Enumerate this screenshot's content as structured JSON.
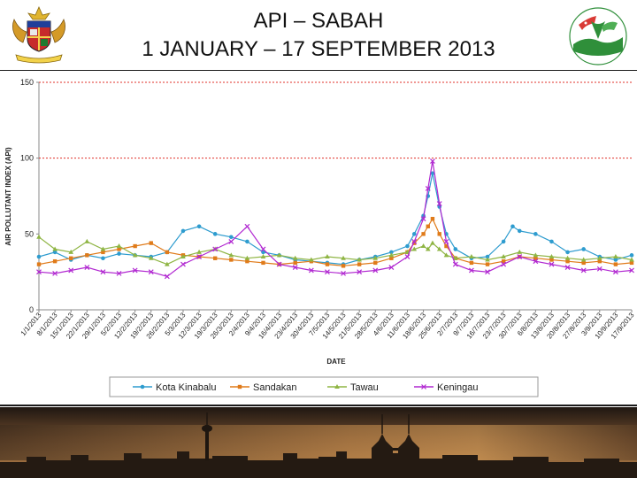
{
  "header": {
    "title_line1": "API – SABAH",
    "title_line2": "1 JANUARY – 17 SEPTEMBER 2013",
    "left_logo": "malaysia-coat-of-arms",
    "right_logo": "department-of-environment-logo"
  },
  "colors": {
    "kota": "#2e9ccf",
    "sandakan": "#e07b1a",
    "tawau": "#8fb544",
    "keningau": "#b128d1",
    "threshold": "#e0302a",
    "axis": "#888888"
  },
  "chart_data": {
    "type": "line",
    "xlabel": "DATE",
    "ylabel": "AIR POLLUTANT INDEX (API)",
    "ylim": [
      0,
      150
    ],
    "yticks": [
      0,
      50,
      100,
      150
    ],
    "reference_lines": [
      100,
      150
    ],
    "grid": false,
    "legend_position": "bottom",
    "start_date": "1/1/2013",
    "x_tick_labels": [
      "1/1/2013",
      "8/1/2013",
      "15/1/2013",
      "22/1/2013",
      "29/1/2013",
      "5/2/2013",
      "12/2/2013",
      "19/2/2013",
      "26/2/2013",
      "5/3/2013",
      "12/3/2013",
      "19/3/2013",
      "26/3/2013",
      "2/4/2013",
      "9/4/2013",
      "16/4/2013",
      "23/4/2013",
      "30/4/2013",
      "7/5/2013",
      "14/5/2013",
      "21/5/2013",
      "28/5/2013",
      "4/6/2013",
      "11/6/2013",
      "18/6/2013",
      "25/6/2013",
      "2/7/2013",
      "9/7/2013",
      "16/7/2013",
      "23/7/2013",
      "30/7/2013",
      "6/8/2013",
      "13/8/2013",
      "20/8/2013",
      "27/8/2013",
      "3/9/2013",
      "10/9/2013",
      "17/9/2013"
    ],
    "series": [
      {
        "name": "Kota Kinabalu",
        "color_key": "kota",
        "marker": "circle",
        "x": [
          "1/1/2013",
          "8/1/2013",
          "15/1/2013",
          "22/1/2013",
          "29/1/2013",
          "5/2/2013",
          "12/2/2013",
          "19/2/2013",
          "26/2/2013",
          "5/3/2013",
          "12/3/2013",
          "19/3/2013",
          "26/3/2013",
          "2/4/2013",
          "9/4/2013",
          "16/4/2013",
          "23/4/2013",
          "30/4/2013",
          "7/5/2013",
          "14/5/2013",
          "21/5/2013",
          "28/5/2013",
          "4/6/2013",
          "11/6/2013",
          "14/6/2013",
          "18/6/2013",
          "20/6/2013",
          "22/6/2013",
          "25/6/2013",
          "28/6/2013",
          "2/7/2013",
          "9/7/2013",
          "16/7/2013",
          "23/7/2013",
          "27/7/2013",
          "30/7/2013",
          "6/8/2013",
          "13/8/2013",
          "20/8/2013",
          "27/8/2013",
          "3/9/2013",
          "10/9/2013",
          "17/9/2013"
        ],
        "values": [
          35,
          38,
          33,
          36,
          34,
          37,
          36,
          35,
          38,
          52,
          55,
          50,
          48,
          45,
          38,
          36,
          33,
          32,
          31,
          30,
          33,
          35,
          38,
          42,
          50,
          62,
          75,
          90,
          68,
          50,
          40,
          34,
          35,
          45,
          55,
          52,
          50,
          45,
          38,
          40,
          35,
          33,
          36
        ]
      },
      {
        "name": "Sandakan",
        "color_key": "sandakan",
        "marker": "square",
        "x": [
          "1/1/2013",
          "8/1/2013",
          "15/1/2013",
          "22/1/2013",
          "29/1/2013",
          "5/2/2013",
          "12/2/2013",
          "19/2/2013",
          "26/2/2013",
          "5/3/2013",
          "12/3/2013",
          "19/3/2013",
          "26/3/2013",
          "2/4/2013",
          "9/4/2013",
          "16/4/2013",
          "23/4/2013",
          "30/4/2013",
          "7/5/2013",
          "14/5/2013",
          "21/5/2013",
          "28/5/2013",
          "4/6/2013",
          "11/6/2013",
          "14/6/2013",
          "18/6/2013",
          "20/6/2013",
          "22/6/2013",
          "25/6/2013",
          "28/6/2013",
          "2/7/2013",
          "9/7/2013",
          "16/7/2013",
          "23/7/2013",
          "30/7/2013",
          "6/8/2013",
          "13/8/2013",
          "20/8/2013",
          "27/8/2013",
          "3/9/2013",
          "10/9/2013",
          "17/9/2013"
        ],
        "values": [
          30,
          32,
          34,
          36,
          38,
          40,
          42,
          44,
          38,
          36,
          35,
          34,
          33,
          32,
          31,
          30,
          31,
          32,
          30,
          29,
          30,
          31,
          34,
          38,
          44,
          50,
          55,
          60,
          50,
          42,
          34,
          31,
          30,
          32,
          35,
          34,
          33,
          32,
          31,
          32,
          30,
          31
        ]
      },
      {
        "name": "Tawau",
        "color_key": "tawau",
        "marker": "triangle",
        "x": [
          "1/1/2013",
          "8/1/2013",
          "15/1/2013",
          "22/1/2013",
          "29/1/2013",
          "5/2/2013",
          "12/2/2013",
          "19/2/2013",
          "26/2/2013",
          "5/3/2013",
          "12/3/2013",
          "19/3/2013",
          "26/3/2013",
          "2/4/2013",
          "9/4/2013",
          "16/4/2013",
          "23/4/2013",
          "30/4/2013",
          "7/5/2013",
          "14/5/2013",
          "21/5/2013",
          "28/5/2013",
          "4/6/2013",
          "11/6/2013",
          "14/6/2013",
          "18/6/2013",
          "20/6/2013",
          "22/6/2013",
          "25/6/2013",
          "28/6/2013",
          "2/7/2013",
          "9/7/2013",
          "16/7/2013",
          "23/7/2013",
          "30/7/2013",
          "6/8/2013",
          "13/8/2013",
          "20/8/2013",
          "27/8/2013",
          "3/9/2013",
          "10/9/2013",
          "17/9/2013"
        ],
        "values": [
          48,
          40,
          38,
          45,
          40,
          42,
          36,
          34,
          30,
          35,
          38,
          40,
          36,
          34,
          35,
          36,
          34,
          33,
          35,
          34,
          33,
          34,
          36,
          38,
          40,
          42,
          40,
          44,
          40,
          36,
          34,
          35,
          33,
          35,
          38,
          36,
          35,
          34,
          33,
          34,
          35,
          33
        ]
      },
      {
        "name": "Keningau",
        "color_key": "keningau",
        "marker": "x",
        "x": [
          "1/1/2013",
          "8/1/2013",
          "15/1/2013",
          "22/1/2013",
          "29/1/2013",
          "5/2/2013",
          "12/2/2013",
          "19/2/2013",
          "26/2/2013",
          "5/3/2013",
          "12/3/2013",
          "19/3/2013",
          "26/3/2013",
          "2/4/2013",
          "9/4/2013",
          "16/4/2013",
          "23/4/2013",
          "30/4/2013",
          "7/5/2013",
          "14/5/2013",
          "21/5/2013",
          "28/5/2013",
          "4/6/2013",
          "11/6/2013",
          "14/6/2013",
          "18/6/2013",
          "20/6/2013",
          "22/6/2013",
          "25/6/2013",
          "28/6/2013",
          "2/7/2013",
          "9/7/2013",
          "16/7/2013",
          "23/7/2013",
          "30/7/2013",
          "6/8/2013",
          "13/8/2013",
          "20/8/2013",
          "27/8/2013",
          "3/9/2013",
          "10/9/2013",
          "17/9/2013"
        ],
        "values": [
          25,
          24,
          26,
          28,
          25,
          24,
          26,
          25,
          22,
          30,
          35,
          40,
          45,
          55,
          40,
          30,
          28,
          26,
          25,
          24,
          25,
          26,
          28,
          35,
          45,
          60,
          80,
          98,
          70,
          45,
          30,
          26,
          25,
          30,
          35,
          32,
          30,
          28,
          26,
          27,
          25,
          26
        ]
      }
    ]
  }
}
